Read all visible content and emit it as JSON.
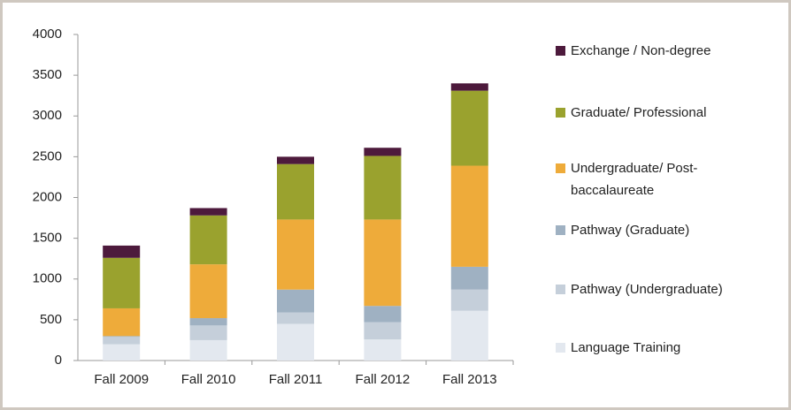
{
  "chart_data": {
    "type": "stacked_bar",
    "categories": [
      "Fall 2009",
      "Fall 2010",
      "Fall 2011",
      "Fall 2012",
      "Fall 2013"
    ],
    "series": [
      {
        "name": "Language Training",
        "color": "#e3e8ef",
        "values": [
          200,
          250,
          450,
          260,
          610
        ]
      },
      {
        "name": "Pathway (Undergraduate)",
        "color": "#c5cfda",
        "values": [
          90,
          180,
          140,
          210,
          260
        ]
      },
      {
        "name": "Pathway (Graduate)",
        "color": "#9fb1c2",
        "values": [
          10,
          90,
          280,
          200,
          280
        ]
      },
      {
        "name": "Undergraduate/ Post-baccalaureate",
        "color": "#eeab3a",
        "values": [
          340,
          660,
          860,
          1060,
          1240
        ]
      },
      {
        "name": "Graduate/ Professional",
        "color": "#9aa22e",
        "values": [
          620,
          600,
          680,
          780,
          920
        ]
      },
      {
        "name": "Exchange / Non-degree",
        "color": "#4d1a3c",
        "values": [
          150,
          90,
          90,
          100,
          90
        ]
      }
    ],
    "ylim": [
      0,
      4000
    ],
    "yticks": [
      0,
      500,
      1000,
      1500,
      2000,
      2500,
      3000,
      3500,
      4000
    ],
    "grid": false
  }
}
